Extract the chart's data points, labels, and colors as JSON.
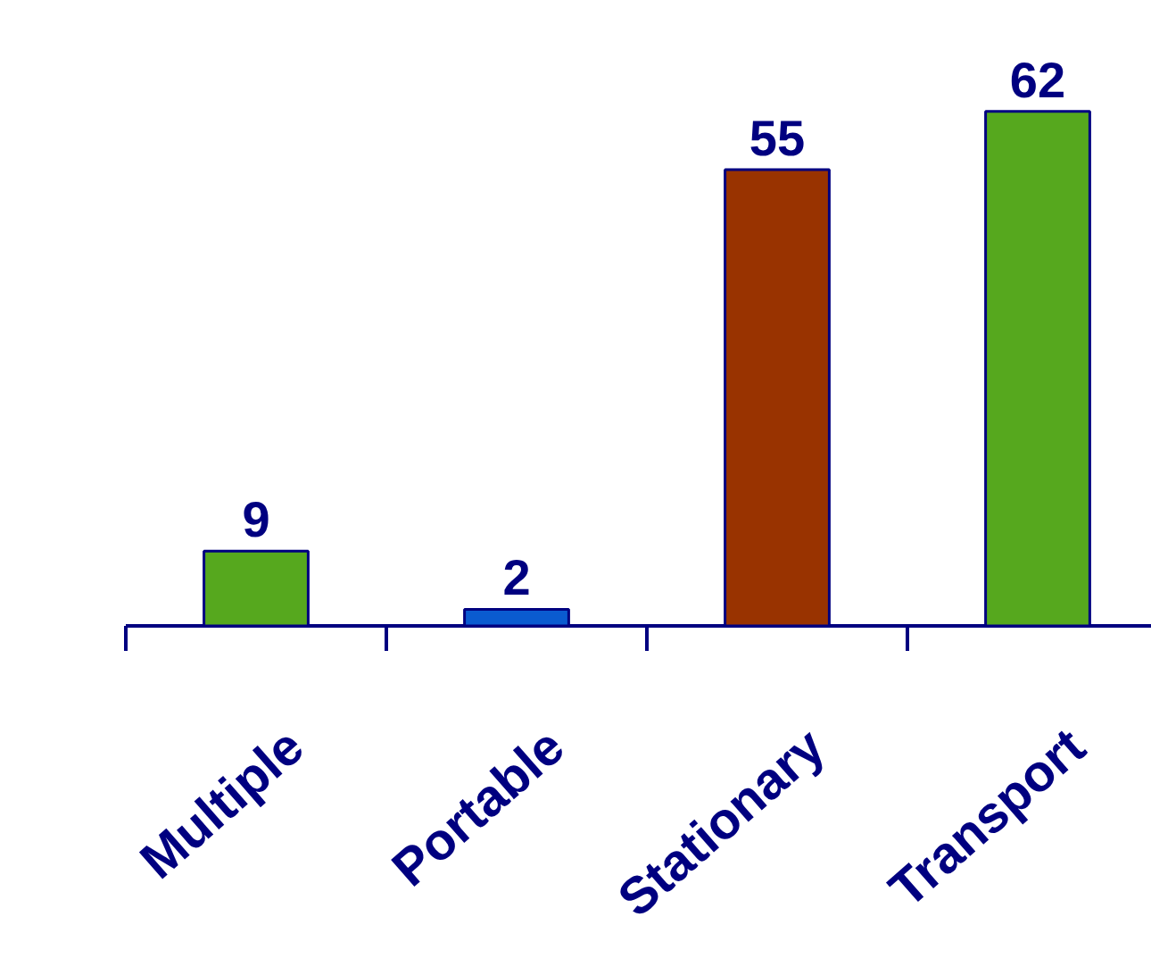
{
  "chart_data": {
    "type": "bar",
    "categories": [
      "Multiple",
      "Portable",
      "Stationary",
      "Transport"
    ],
    "values": [
      9,
      2,
      55,
      62
    ],
    "colors": [
      "#56a81e",
      "#0a5bd0",
      "#993300",
      "#56a81e"
    ],
    "data_labels": true,
    "grid": false
  }
}
